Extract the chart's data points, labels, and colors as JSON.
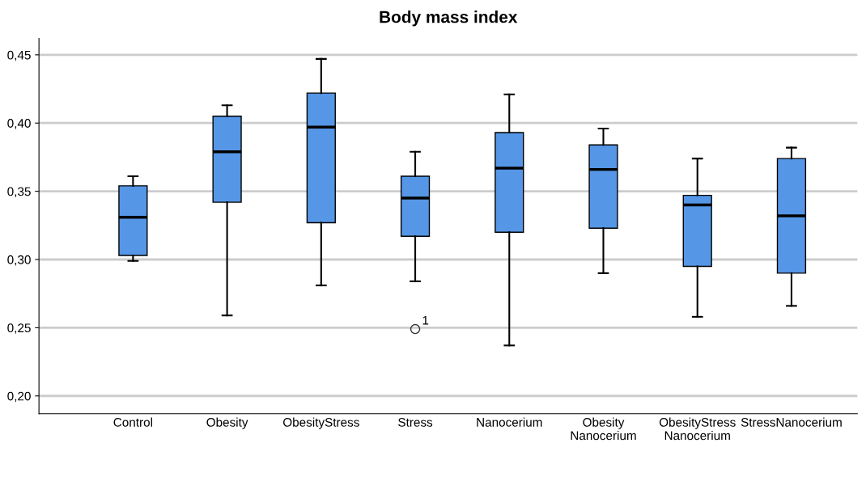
{
  "chart_data": {
    "type": "box",
    "title": "Body mass index",
    "categories": [
      "Control",
      "Obesity",
      "ObesityStress",
      "Stress",
      "Nanocerium",
      "Obesity\nNanocerium",
      "ObesityStress\nNanocerium",
      "StressNanocerium"
    ],
    "color": "#5596e6",
    "boxes": [
      {
        "low": 0.299,
        "q1": 0.303,
        "median": 0.331,
        "q3": 0.354,
        "high": 0.361
      },
      {
        "low": 0.259,
        "q1": 0.342,
        "median": 0.379,
        "q3": 0.405,
        "high": 0.413
      },
      {
        "low": 0.281,
        "q1": 0.327,
        "median": 0.397,
        "q3": 0.422,
        "high": 0.447
      },
      {
        "low": 0.284,
        "q1": 0.317,
        "median": 0.345,
        "q3": 0.361,
        "high": 0.379,
        "outliers": [
          0.249
        ]
      },
      {
        "low": 0.237,
        "q1": 0.32,
        "median": 0.367,
        "q3": 0.393,
        "high": 0.421
      },
      {
        "low": 0.29,
        "q1": 0.323,
        "median": 0.366,
        "q3": 0.384,
        "high": 0.396
      },
      {
        "low": 0.258,
        "q1": 0.295,
        "median": 0.34,
        "q3": 0.347,
        "high": 0.374
      },
      {
        "low": 0.266,
        "q1": 0.29,
        "median": 0.332,
        "q3": 0.374,
        "high": 0.382
      }
    ],
    "annotations": [
      "1"
    ],
    "ylim": [
      0.187,
      0.462
    ],
    "yticks": [
      {
        "value": 0.2,
        "label": "0,20"
      },
      {
        "value": 0.25,
        "label": "0,25"
      },
      {
        "value": 0.3,
        "label": "0,30"
      },
      {
        "value": 0.35,
        "label": "0,35"
      },
      {
        "value": 0.4,
        "label": "0,40"
      },
      {
        "value": 0.45,
        "label": "0,45"
      }
    ],
    "grid": "y"
  }
}
